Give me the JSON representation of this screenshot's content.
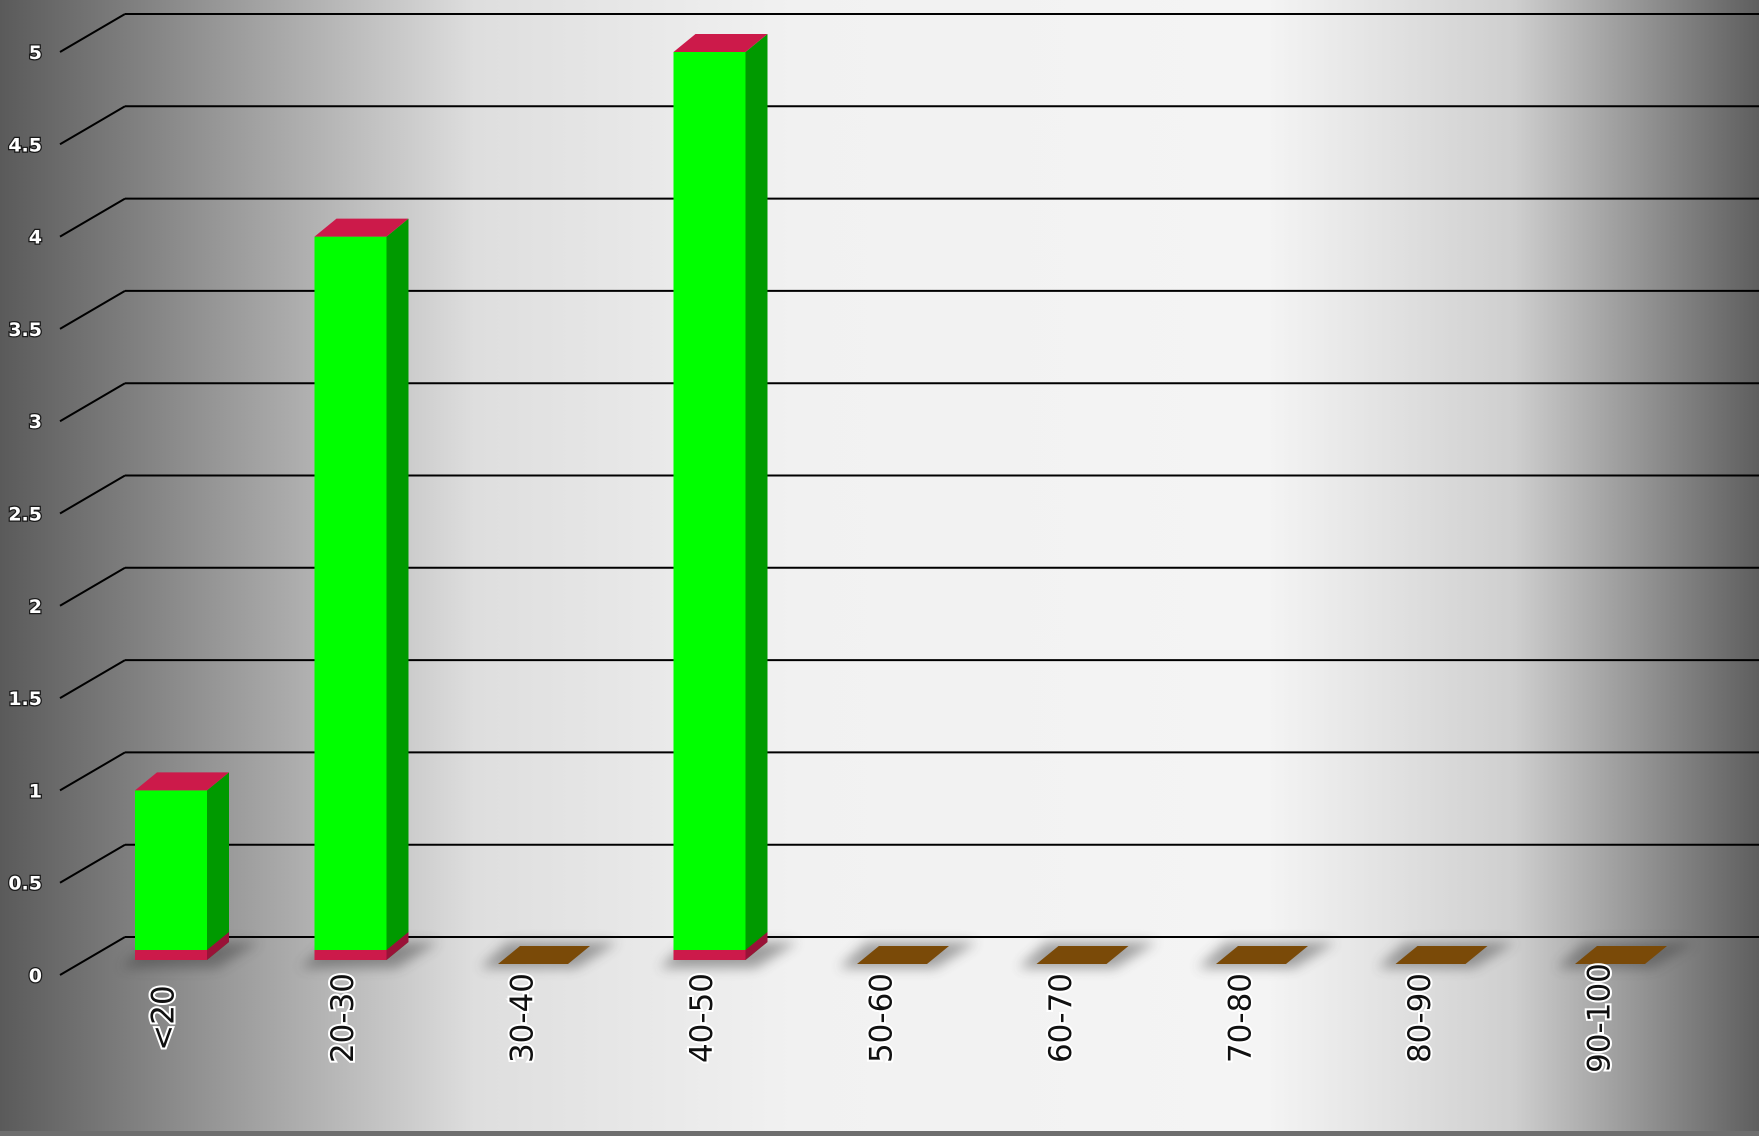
{
  "chart_data": {
    "type": "bar",
    "title": "",
    "xlabel": "",
    "ylabel": "",
    "categories": [
      "<20",
      "20-30",
      "30-40",
      "40-50",
      "50-60",
      "60-70",
      "70-80",
      "80-90",
      "90-100"
    ],
    "values": [
      1,
      4,
      0,
      5,
      0,
      0,
      0,
      0,
      0
    ],
    "ylim": [
      0,
      5
    ],
    "y_ticks": [
      "0",
      "0.5",
      "1",
      "1.5",
      "2",
      "2.5",
      "3",
      "3.5",
      "4",
      "4.5",
      "5"
    ],
    "grid": true,
    "legend": "none",
    "three_d": true
  },
  "colors": {
    "bar_front": "#00ff00",
    "bar_side": "#009a00",
    "bar_top": "#cc1a4a",
    "bar_bottom": "#cc1a4a",
    "empty_marker": "#7a4a08",
    "grid_line": "#000000",
    "wall_center": "#f2f2f2",
    "wall_edge": "#5a5a5a"
  }
}
